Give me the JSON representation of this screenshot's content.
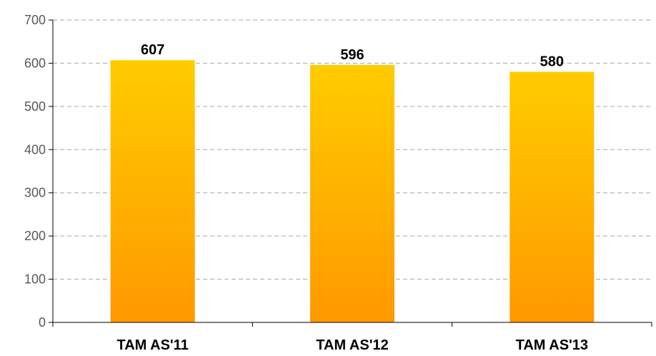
{
  "chart_data": {
    "type": "bar",
    "categories": [
      "TAM AS'11",
      "TAM AS'12",
      "TAM AS'13"
    ],
    "values": [
      607,
      596,
      580
    ],
    "data_labels": [
      "607",
      "596",
      "580"
    ],
    "title": "",
    "xlabel": "",
    "ylabel": "",
    "ylim": [
      0,
      700
    ],
    "yticks": [
      0,
      100,
      200,
      300,
      400,
      500,
      600,
      700
    ],
    "grid": true,
    "legend": "none",
    "colors": {
      "bar_top": "#FFCC00",
      "bar_bottom": "#FF9900",
      "gridline": "#A6A6A6",
      "axis": "#000000",
      "tick_text": "#595959"
    }
  }
}
